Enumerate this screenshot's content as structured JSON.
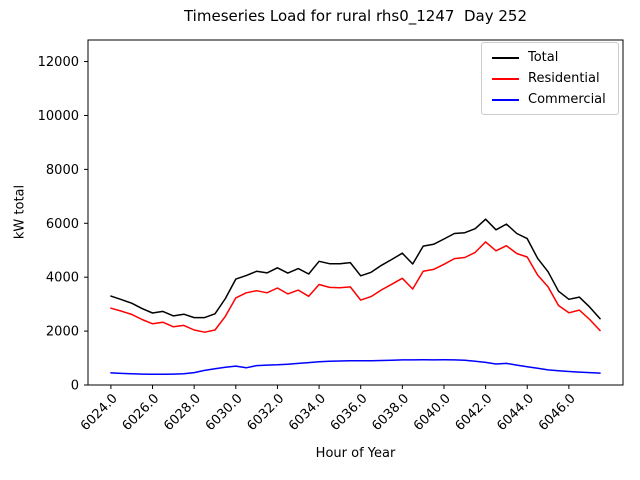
{
  "chart_data": {
    "type": "line",
    "title": "Timeseries Load for rural rhs0_1247  Day 252",
    "xlabel": "Hour of Year",
    "ylabel": "kW total",
    "xlim": [
      6022.9,
      6048.6
    ],
    "ylim": [
      0,
      12800
    ],
    "grid": false,
    "legend_position": "upper-right",
    "xticks": {
      "values": [
        6024,
        6026,
        6028,
        6030,
        6032,
        6034,
        6036,
        6038,
        6040,
        6042,
        6044,
        6046
      ],
      "labels": [
        "6024.0",
        "6026.0",
        "6028.0",
        "6030.0",
        "6032.0",
        "6034.0",
        "6036.0",
        "6038.0",
        "6040.0",
        "6042.0",
        "6044.0",
        "6046.0"
      ]
    },
    "yticks": {
      "values": [
        0,
        2000,
        4000,
        6000,
        8000,
        10000,
        12000
      ],
      "labels": [
        "0",
        "2000",
        "4000",
        "6000",
        "8000",
        "10000",
        "12000"
      ]
    },
    "x": [
      6024.0,
      6024.5,
      6025.0,
      6025.5,
      6026.0,
      6026.5,
      6027.0,
      6027.5,
      6028.0,
      6028.5,
      6029.0,
      6029.5,
      6030.0,
      6030.5,
      6031.0,
      6031.5,
      6032.0,
      6032.5,
      6033.0,
      6033.5,
      6034.0,
      6034.5,
      6035.0,
      6035.5,
      6036.0,
      6036.5,
      6037.0,
      6037.5,
      6038.0,
      6038.5,
      6039.0,
      6039.5,
      6040.0,
      6040.5,
      6041.0,
      6041.5,
      6042.0,
      6042.5,
      6043.0,
      6043.5,
      6044.0,
      6044.5,
      6045.0,
      6045.5,
      6046.0,
      6046.5,
      6047.0,
      6047.5
    ],
    "series": [
      {
        "name": "Total",
        "color": "#000000",
        "values": [
          3300,
          3170,
          3035,
          2835,
          2670,
          2730,
          2565,
          2625,
          2500,
          2500,
          2640,
          3210,
          3930,
          4060,
          4220,
          4160,
          4350,
          4150,
          4320,
          4120,
          4590,
          4500,
          4500,
          4540,
          4050,
          4180,
          4440,
          4660,
          4890,
          4490,
          5155,
          5220,
          5415,
          5620,
          5650,
          5800,
          6150,
          5760,
          5970,
          5620,
          5430,
          4700,
          4200,
          3480,
          3180,
          3260,
          2890,
          2460
        ]
      },
      {
        "name": "Residential",
        "color": "#ff0000",
        "values": [
          2850,
          2740,
          2620,
          2430,
          2270,
          2330,
          2160,
          2210,
          2040,
          1960,
          2040,
          2550,
          3230,
          3420,
          3500,
          3420,
          3600,
          3380,
          3520,
          3290,
          3730,
          3620,
          3610,
          3640,
          3150,
          3280,
          3530,
          3740,
          3960,
          3560,
          4220,
          4290,
          4480,
          4690,
          4730,
          4920,
          5310,
          4980,
          5170,
          4880,
          4750,
          4080,
          3640,
          2950,
          2680,
          2780,
          2430,
          2020
        ]
      },
      {
        "name": "Commercial",
        "color": "#0000ff",
        "values": [
          450,
          430,
          415,
          405,
          400,
          400,
          405,
          415,
          460,
          540,
          600,
          660,
          700,
          640,
          720,
          740,
          750,
          770,
          800,
          830,
          860,
          880,
          890,
          900,
          900,
          900,
          910,
          920,
          930,
          930,
          935,
          930,
          935,
          930,
          920,
          880,
          840,
          780,
          800,
          740,
          680,
          620,
          560,
          530,
          500,
          480,
          460,
          440
        ]
      }
    ]
  }
}
